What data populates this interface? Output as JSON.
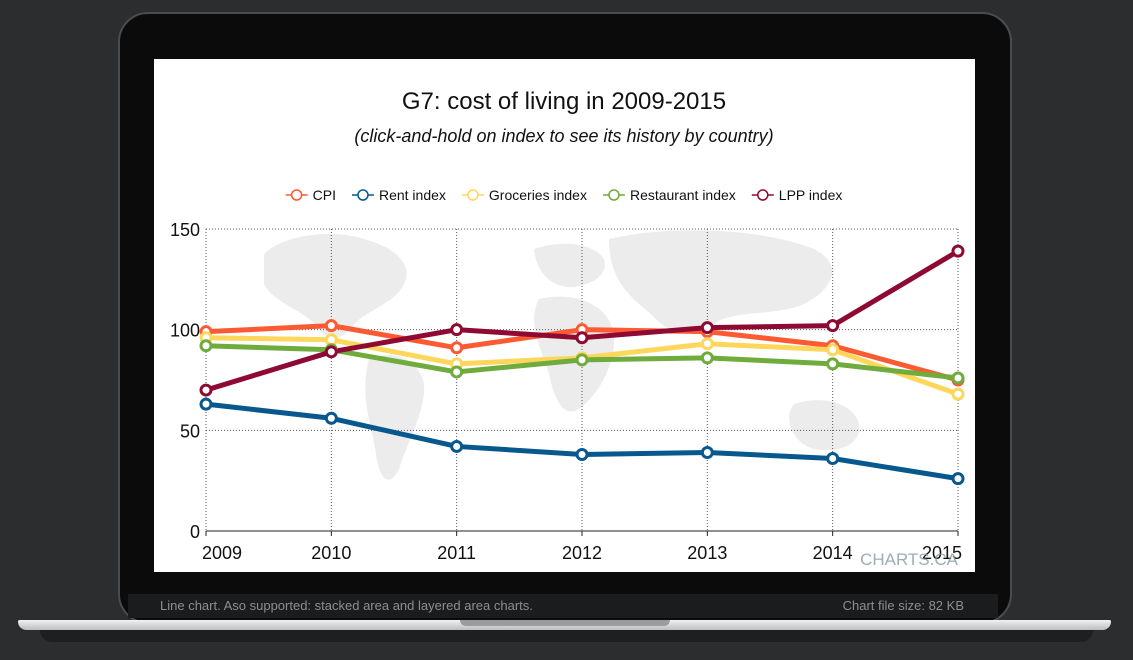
{
  "status": {
    "left_text": "Line chart. Aso supported: stacked area and layered area charts.",
    "right_text": "Chart file size: 82 KB"
  },
  "watermark": "CHARTS.CA",
  "chart_data": {
    "type": "line",
    "title": "G7: cost of living in 2009-2015",
    "subtitle": "(click-and-hold on index to see its history by country)",
    "xlabel": "",
    "ylabel": "",
    "categories": [
      "2009",
      "2010",
      "2011",
      "2012",
      "2013",
      "2014",
      "2015"
    ],
    "ylim": [
      0,
      150
    ],
    "yticks": [
      "0",
      "50",
      "100",
      "150"
    ],
    "grid": true,
    "legend_position": "top-center",
    "series": [
      {
        "name": "CPI",
        "color": "#fb5a33",
        "values": [
          99,
          102,
          91,
          100,
          99,
          92,
          75
        ]
      },
      {
        "name": "Rent index",
        "color": "#07588d",
        "values": [
          63,
          56,
          42,
          38,
          39,
          36,
          26
        ]
      },
      {
        "name": "Groceries index",
        "color": "#fdd65c",
        "values": [
          96,
          95,
          83,
          86,
          93,
          90,
          68
        ]
      },
      {
        "name": "Restaurant index",
        "color": "#6fab3d",
        "values": [
          92,
          90,
          79,
          85,
          86,
          83,
          76
        ]
      },
      {
        "name": "LPP index",
        "color": "#8e0a32",
        "values": [
          70,
          89,
          100,
          96,
          101,
          102,
          139
        ]
      }
    ]
  }
}
